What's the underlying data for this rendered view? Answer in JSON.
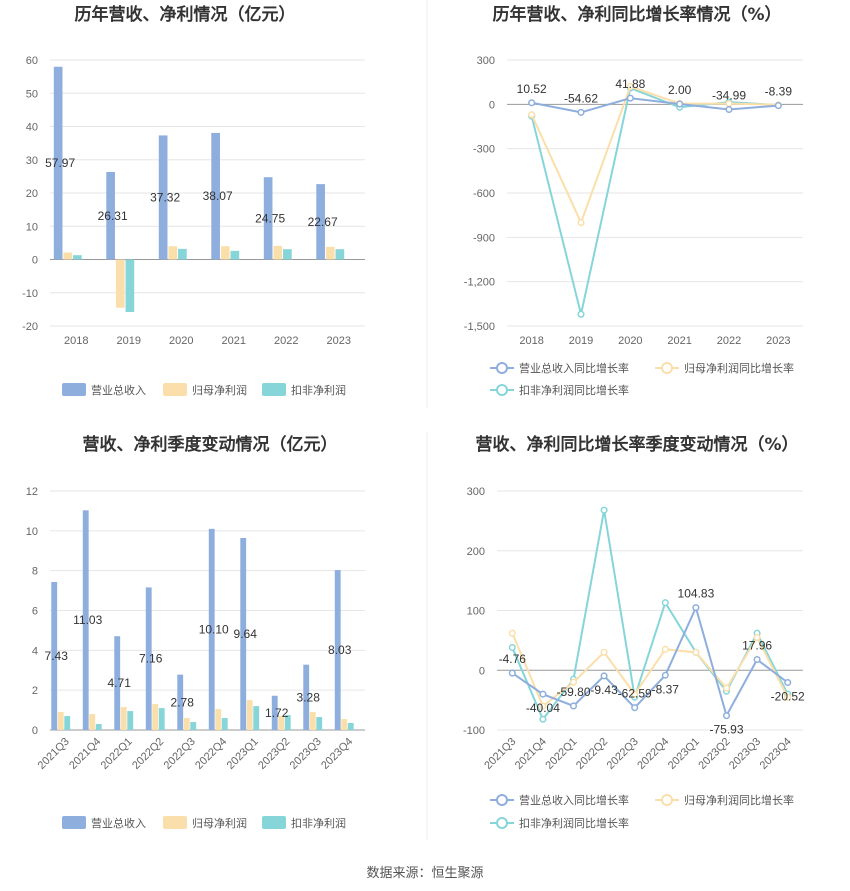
{
  "source_text": "数据来源：恒生聚源",
  "chart_data": [
    {
      "type": "bar",
      "title": "历年营收、净利情况（亿元）",
      "categories": [
        "2018",
        "2019",
        "2020",
        "2021",
        "2022",
        "2023"
      ],
      "ylim": [
        -20,
        60
      ],
      "yticks": [
        -20,
        -10,
        0,
        10,
        20,
        30,
        40,
        50,
        60
      ],
      "grid": true,
      "legend_position": "bottom",
      "colors": [
        "#8eaedd",
        "#fbdfaa",
        "#86d5d9"
      ],
      "series": [
        {
          "name": "营业总收入",
          "values": [
            57.97,
            26.31,
            37.32,
            38.07,
            24.75,
            22.67
          ],
          "labels": [
            "57.97",
            "26.31",
            "37.32",
            "38.07",
            "24.75",
            "22.67"
          ]
        },
        {
          "name": "归母净利润",
          "values": [
            2.1,
            -14.5,
            4.0,
            4.0,
            4.1,
            3.8
          ]
        },
        {
          "name": "扣非净利润",
          "values": [
            1.3,
            -15.8,
            3.2,
            2.6,
            3.1,
            3.1
          ]
        }
      ]
    },
    {
      "type": "line",
      "title": "历年营收、净利同比增长率情况（%）",
      "categories": [
        "2018",
        "2019",
        "2020",
        "2021",
        "2022",
        "2023"
      ],
      "ylim": [
        -1500,
        300
      ],
      "yticks": [
        -1500,
        -1200,
        -900,
        -600,
        -300,
        0,
        300
      ],
      "ytick_labels": [
        "-1,500",
        "-1,200",
        "-900",
        "-600",
        "-300",
        "0",
        "300"
      ],
      "grid": true,
      "legend_position": "bottom",
      "colors": [
        "#8eaedd",
        "#fbdfaa",
        "#86d5d9"
      ],
      "series": [
        {
          "name": "营业总收入同比增长率",
          "values": [
            10.52,
            -54.62,
            41.88,
            2.0,
            -34.99,
            -8.39
          ],
          "labels": [
            "10.52",
            "-54.62",
            "41.88",
            "2.00",
            "-34.99",
            "-8.39"
          ]
        },
        {
          "name": "归母净利润同比增长率",
          "values": [
            -70,
            -800,
            120,
            5,
            5,
            -3
          ]
        },
        {
          "name": "扣非净利润同比增长率",
          "values": [
            -80,
            -1420,
            110,
            -20,
            15,
            -5
          ]
        }
      ]
    },
    {
      "type": "bar",
      "title": "营收、净利季度变动情况（亿元）",
      "categories": [
        "2021Q3",
        "2021Q4",
        "2022Q1",
        "2022Q2",
        "2022Q3",
        "2022Q4",
        "2023Q1",
        "2023Q2",
        "2023Q3",
        "2023Q4"
      ],
      "ylim": [
        0,
        12
      ],
      "yticks": [
        0,
        2,
        4,
        6,
        8,
        10,
        12
      ],
      "grid": true,
      "legend_position": "bottom",
      "colors": [
        "#8eaedd",
        "#fbdfaa",
        "#86d5d9"
      ],
      "series": [
        {
          "name": "营业总收入",
          "values": [
            7.43,
            11.03,
            4.71,
            7.16,
            2.78,
            10.1,
            9.64,
            1.72,
            3.28,
            8.03
          ],
          "labels": [
            "7.43",
            "11.03",
            "4.71",
            "7.16",
            "2.78",
            "10.10",
            "9.64",
            "1.72",
            "3.28",
            "8.03"
          ]
        },
        {
          "name": "归母净利润",
          "values": [
            0.9,
            0.8,
            1.15,
            1.3,
            0.6,
            1.05,
            1.5,
            0.7,
            0.9,
            0.55
          ]
        },
        {
          "name": "扣非净利润",
          "values": [
            0.7,
            0.3,
            0.95,
            1.1,
            0.4,
            0.6,
            1.2,
            0.75,
            0.65,
            0.35
          ]
        }
      ]
    },
    {
      "type": "line",
      "title": "营收、净利同比增长率季度变动情况（%）",
      "categories": [
        "2021Q3",
        "2021Q4",
        "2022Q1",
        "2022Q2",
        "2022Q3",
        "2022Q4",
        "2023Q1",
        "2023Q2",
        "2023Q3",
        "2023Q4"
      ],
      "ylim": [
        -100,
        300
      ],
      "yticks": [
        -100,
        0,
        100,
        200,
        300
      ],
      "grid": true,
      "legend_position": "bottom",
      "colors": [
        "#8eaedd",
        "#fbdfaa",
        "#86d5d9"
      ],
      "series": [
        {
          "name": "营业总收入同比增长率",
          "values": [
            -4.76,
            -40.04,
            -59.8,
            -9.43,
            -62.59,
            -8.37,
            104.83,
            -75.93,
            17.96,
            -20.52
          ],
          "labels": [
            "-4.76",
            "-40.04",
            "-59.80",
            "-9.43",
            "-62.59",
            "-8.37",
            "104.83",
            "-75.93",
            "17.96",
            "-20.52"
          ]
        },
        {
          "name": "归母净利润同比增长率",
          "values": [
            62,
            -60,
            -20,
            30,
            -40,
            35,
            30,
            -30,
            55,
            -45
          ]
        },
        {
          "name": "扣非净利润同比增长率",
          "values": [
            38,
            -82,
            -15,
            268,
            -45,
            113,
            30,
            -35,
            62,
            -40
          ]
        }
      ]
    }
  ]
}
